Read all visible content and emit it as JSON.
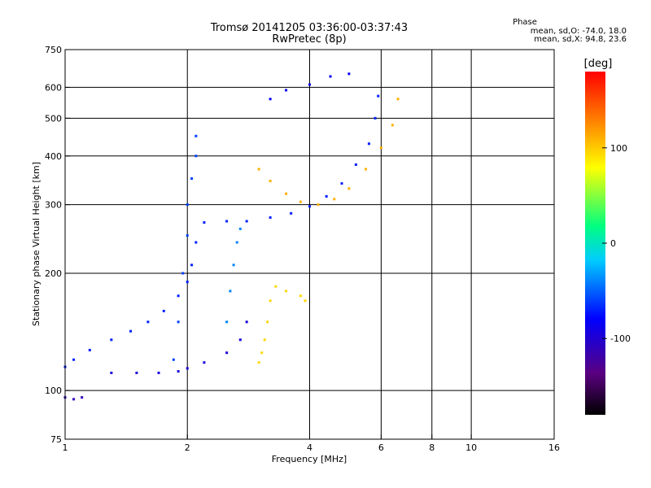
{
  "header": {
    "title_line1": "Tromsø 20141205 03:36:00-03:37:43",
    "title_line2": "RwPretec (8p)",
    "phase_title": "Phase",
    "phase_stat_o": "mean, sd,O: -74.0, 18.0",
    "phase_stat_x": "mean, sd,X:  94.8, 23.6"
  },
  "colorbar": {
    "label": "[deg]",
    "ticks": [
      {
        "value": 100,
        "label": "100"
      },
      {
        "value": 0,
        "label": "0"
      },
      {
        "value": -100,
        "label": "-100"
      }
    ],
    "range": [
      -180,
      180
    ]
  },
  "chart_data": {
    "type": "scatter",
    "title": "Tromsø 20141205 03:36:00-03:37:43",
    "subtitle": "RwPretec (8p)",
    "xlabel": "Frequency [MHz]",
    "ylabel": "Stationary phase Virtual Height [km]",
    "x_scale": "log",
    "y_scale": "log",
    "xlim": [
      1,
      16
    ],
    "ylim": [
      75,
      750
    ],
    "x_ticks": [
      1,
      2,
      4,
      6,
      8,
      10,
      16
    ],
    "y_ticks": [
      75,
      100,
      200,
      300,
      400,
      500,
      600,
      750
    ],
    "x_gridlines": [
      2,
      4,
      6,
      8,
      10
    ],
    "y_gridlines": [
      100,
      200,
      300,
      400,
      500,
      600
    ],
    "grid": true,
    "color_scale": "rainbow phase (deg)",
    "traces": [
      {
        "name": "",
        "phase": -70,
        "points": [
          [
            1.0,
            115
          ],
          [
            1.05,
            120
          ],
          [
            1.15,
            127
          ],
          [
            1.3,
            135
          ],
          [
            1.45,
            142
          ],
          [
            1.6,
            150
          ],
          [
            1.75,
            160
          ],
          [
            1.9,
            175
          ],
          [
            2.0,
            190
          ],
          [
            2.05,
            210
          ],
          [
            2.1,
            240
          ],
          [
            2.2,
            270
          ],
          [
            2.5,
            272
          ],
          [
            2.8,
            272
          ],
          [
            3.2,
            278
          ],
          [
            3.6,
            285
          ],
          [
            4.0,
            297
          ],
          [
            4.4,
            315
          ],
          [
            4.8,
            340
          ],
          [
            5.2,
            380
          ],
          [
            5.6,
            430
          ],
          [
            5.8,
            500
          ],
          [
            5.9,
            570
          ]
        ]
      },
      {
        "name": "",
        "phase": -95,
        "points": [
          [
            1.3,
            111
          ],
          [
            1.5,
            111
          ],
          [
            1.7,
            111
          ],
          [
            1.9,
            112
          ],
          [
            2.0,
            114
          ],
          [
            2.2,
            118
          ],
          [
            2.5,
            125
          ],
          [
            2.7,
            135
          ],
          [
            2.8,
            150
          ]
        ]
      },
      {
        "name": "",
        "phase": -60,
        "points": [
          [
            1.85,
            120
          ],
          [
            1.9,
            150
          ],
          [
            1.95,
            200
          ],
          [
            2.0,
            250
          ],
          [
            2.0,
            300
          ],
          [
            2.05,
            350
          ],
          [
            2.1,
            400
          ],
          [
            2.1,
            450
          ]
        ]
      },
      {
        "name": "",
        "phase": -40,
        "points": [
          [
            2.5,
            150
          ],
          [
            2.55,
            180
          ],
          [
            2.6,
            210
          ],
          [
            2.65,
            240
          ],
          [
            2.7,
            260
          ]
        ]
      },
      {
        "name": "",
        "phase": 95,
        "points": [
          [
            3.0,
            118
          ],
          [
            3.05,
            125
          ],
          [
            3.1,
            135
          ],
          [
            3.15,
            150
          ],
          [
            3.2,
            170
          ],
          [
            3.3,
            185
          ],
          [
            3.5,
            180
          ],
          [
            3.8,
            175
          ],
          [
            3.9,
            170
          ]
        ]
      },
      {
        "name": "",
        "phase": 110,
        "points": [
          [
            3.0,
            370
          ],
          [
            3.2,
            345
          ],
          [
            3.5,
            320
          ],
          [
            3.8,
            305
          ],
          [
            4.2,
            300
          ],
          [
            4.6,
            310
          ],
          [
            5.0,
            330
          ],
          [
            5.5,
            370
          ],
          [
            6.0,
            420
          ],
          [
            6.4,
            480
          ],
          [
            6.6,
            560
          ]
        ]
      },
      {
        "name": "",
        "phase": -85,
        "points": [
          [
            3.2,
            560
          ],
          [
            3.5,
            590
          ],
          [
            4.0,
            610
          ],
          [
            4.5,
            640
          ],
          [
            5.0,
            650
          ]
        ]
      },
      {
        "name": "",
        "phase": -110,
        "points": [
          [
            1.0,
            96
          ],
          [
            1.05,
            95
          ],
          [
            1.1,
            96
          ]
        ]
      }
    ]
  }
}
